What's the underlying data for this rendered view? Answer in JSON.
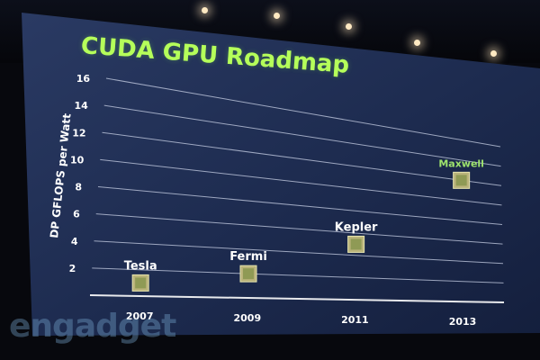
{
  "slide": {
    "title": "CUDA GPU Roadmap",
    "ylabel": "DP GFLOPS per Watt",
    "yticks": [
      "2",
      "4",
      "6",
      "8",
      "10",
      "12",
      "14",
      "16"
    ],
    "xticks": [
      "2007",
      "2009",
      "2011",
      "2013"
    ]
  },
  "chart_data": {
    "type": "scatter",
    "title": "CUDA GPU Roadmap",
    "ylabel": "DP GFLOPS per Watt",
    "xlabel": "",
    "ylim": [
      0,
      16
    ],
    "x": [
      "2007",
      "2009",
      "2011",
      "2013"
    ],
    "points": [
      {
        "label": "Tesla",
        "x": "2007",
        "y": 1
      },
      {
        "label": "Fermi",
        "x": "2009",
        "y": 2
      },
      {
        "label": "Kepler",
        "x": "2011",
        "y": 5
      },
      {
        "label": "Maxwell",
        "x": "2013",
        "y": 12
      }
    ]
  },
  "watermark": {
    "text": "engadget"
  },
  "colors": {
    "title": "#b5ff5a",
    "axis_text": "#ffffff",
    "maxwell_label": "#9ee36d",
    "screen": "#1e2d52",
    "grid": "#c9d1e6"
  }
}
